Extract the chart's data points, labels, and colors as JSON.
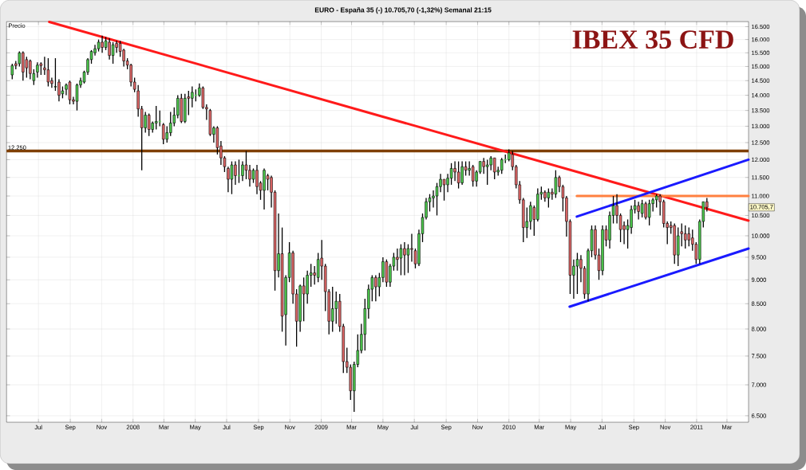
{
  "chart_data": {
    "type": "candlestick",
    "title": "IBEX 35 CFD",
    "subtitle": "EURO - España 35 (-)   10.705,70 (-1,32%)   Semanal  21:15",
    "ylabel": "Precio",
    "log": true,
    "grid": true,
    "colors": [
      "#4cc94c",
      "#e06666",
      "#4cc94c",
      "#e06666",
      "#e06666",
      "#e06666",
      "#4cc94c",
      "#4cc94c",
      "#e06666",
      "#e06666",
      "#e06666",
      "#e06666",
      "#4cc94c",
      "#e06666",
      "#4cc94c",
      "#4cc94c",
      "#e06666",
      "#e06666",
      "#4cc94c",
      "#4cc94c",
      "#4cc94c",
      "#4cc94c",
      "#4cc94c",
      "#4cc94c",
      "#4cc94c",
      "#e06666",
      "#4cc94c",
      "#e06666",
      "#4cc94c",
      "#e06666",
      "#e06666",
      "#e06666",
      "#e06666",
      "#e06666",
      "#e06666",
      "#e06666",
      "#e06666",
      "#4cc94c",
      "#e06666",
      "#4cc94c",
      "#4cc94c",
      "#4cc94c",
      "#e06666",
      "#4cc94c",
      "#4cc94c",
      "#4cc94c",
      "#4cc94c",
      "#e06666",
      "#4cc94c",
      "#e06666",
      "#4cc94c",
      "#4cc94c",
      "#4cc94c",
      "#e06666",
      "#e06666",
      "#e06666",
      "#4cc94c",
      "#e06666",
      "#e06666",
      "#e06666",
      "#e06666",
      "#4cc94c",
      "#e06666",
      "#4cc94c",
      "#4cc94c",
      "#e06666",
      "#e06666",
      "#4cc94c",
      "#e06666",
      "#e06666",
      "#4cc94c",
      "#e06666",
      "#e06666",
      "#e06666",
      "#4cc94c",
      "#e06666",
      "#4cc94c",
      "#4cc94c",
      "#e06666",
      "#e06666",
      "#4cc94c",
      "#e06666",
      "#4cc94c",
      "#4cc94c",
      "#e06666",
      "#4cc94c",
      "#e06666",
      "#e06666",
      "#e06666",
      "#4cc94c",
      "#4cc94c",
      "#e06666",
      "#e06666",
      "#e06666",
      "#e06666",
      "#4cc94c",
      "#4cc94c",
      "#4cc94c",
      "#4cc94c",
      "#4cc94c",
      "#4cc94c",
      "#e06666",
      "#4cc94c",
      "#4cc94c",
      "#e06666",
      "#4cc94c",
      "#4cc94c",
      "#e06666",
      "#4cc94c",
      "#e06666",
      "#4cc94c",
      "#e06666",
      "#e06666",
      "#4cc94c",
      "#4cc94c",
      "#4cc94c",
      "#4cc94c",
      "#4cc94c",
      "#4cc94c",
      "#4cc94c",
      "#e06666",
      "#4cc94c",
      "#4cc94c",
      "#e06666",
      "#e06666",
      "#4cc94c",
      "#e06666",
      "#4cc94c",
      "#e06666",
      "#4cc94c",
      "#4cc94c",
      "#e06666",
      "#4cc94c",
      "#4cc94c",
      "#e06666",
      "#4cc94c",
      "#4cc94c",
      "#4cc94c",
      "#4cc94c",
      "#e06666",
      "#e06666",
      "#e06666",
      "#e06666",
      "#4cc94c",
      "#4cc94c",
      "#e06666",
      "#4cc94c",
      "#4cc94c",
      "#e06666",
      "#4cc94c",
      "#e06666",
      "#4cc94c",
      "#e06666",
      "#e06666",
      "#e06666",
      "#e06666",
      "#4cc94c",
      "#4cc94c",
      "#e06666",
      "#e06666",
      "#4cc94c",
      "#4cc94c",
      "#e06666",
      "#e06666",
      "#4cc94c",
      "#e06666",
      "#4cc94c",
      "#4cc94c",
      "#e06666",
      "#e06666",
      "#e06666",
      "#4cc94c",
      "#4cc94c",
      "#4cc94c",
      "#e06666",
      "#4cc94c",
      "#e06666",
      "#4cc94c",
      "#4cc94c",
      "#4cc94c",
      "#e06666",
      "#e06666",
      "#e06666",
      "#e06666",
      "#e06666",
      "#4cc94c",
      "#e06666",
      "#e06666",
      "#e06666",
      "#e06666",
      "#e06666",
      "#4cc94c",
      "#4cc94c",
      "#e06666"
    ],
    "xlim": [
      "2007-04-30",
      "2011-04-12"
    ],
    "ylim": [
      6400,
      16700
    ],
    "xticks": [
      {
        "value": "2007-07-01",
        "label": "Jul"
      },
      {
        "value": "2007-09-01",
        "label": "Sep"
      },
      {
        "value": "2007-11-01",
        "label": "Nov"
      },
      {
        "value": "2008-01-01",
        "label": "2008"
      },
      {
        "value": "2008-03-01",
        "label": "Mar"
      },
      {
        "value": "2008-05-01",
        "label": "May"
      },
      {
        "value": "2008-07-01",
        "label": "Jul"
      },
      {
        "value": "2008-09-01",
        "label": "Sep"
      },
      {
        "value": "2008-11-01",
        "label": "Nov"
      },
      {
        "value": "2009-01-01",
        "label": "2009"
      },
      {
        "value": "2009-03-01",
        "label": "Mar"
      },
      {
        "value": "2009-05-01",
        "label": "May"
      },
      {
        "value": "2009-07-01",
        "label": "Jul"
      },
      {
        "value": "2009-09-01",
        "label": "Sep"
      },
      {
        "value": "2009-11-01",
        "label": "Nov"
      },
      {
        "value": "2010-01-01",
        "label": "2010"
      },
      {
        "value": "2010-03-01",
        "label": "Mar"
      },
      {
        "value": "2010-05-01",
        "label": "May"
      },
      {
        "value": "2010-07-01",
        "label": "Jul"
      },
      {
        "value": "2010-09-01",
        "label": "Sep"
      },
      {
        "value": "2010-11-01",
        "label": "Nov"
      },
      {
        "value": "2011-01-01",
        "label": "2011"
      },
      {
        "value": "2011-03-01",
        "label": "Mar"
      }
    ],
    "yticks": [
      {
        "value": 6500,
        "label": "6.500"
      },
      {
        "value": 7000,
        "label": "7.000"
      },
      {
        "value": 7500,
        "label": "7.500"
      },
      {
        "value": 8000,
        "label": "8.000"
      },
      {
        "value": 8500,
        "label": "8.500"
      },
      {
        "value": 9000,
        "label": "9.000"
      },
      {
        "value": 9500,
        "label": "9.500"
      },
      {
        "value": 10000,
        "label": "10.000"
      },
      {
        "value": 10500,
        "label": "10.500"
      },
      {
        "value": 11000,
        "label": "11.000"
      },
      {
        "value": 11500,
        "label": "11.500"
      },
      {
        "value": 12000,
        "label": "12.000"
      },
      {
        "value": 12500,
        "label": "12.500"
      },
      {
        "value": 13000,
        "label": "13.000"
      },
      {
        "value": 13500,
        "label": "13.500"
      },
      {
        "value": 14000,
        "label": "14.000"
      },
      {
        "value": 14500,
        "label": "14.500"
      },
      {
        "value": 15000,
        "label": "15.000"
      },
      {
        "value": 15500,
        "label": "15.500"
      },
      {
        "value": 16000,
        "label": "16.000"
      },
      {
        "value": 16500,
        "label": "16.500"
      }
    ],
    "x": [
      "2007-05-11",
      "2007-05-18",
      "2007-05-25",
      "2007-06-01",
      "2007-06-08",
      "2007-06-15",
      "2007-06-22",
      "2007-06-29",
      "2007-07-06",
      "2007-07-13",
      "2007-07-20",
      "2007-07-27",
      "2007-08-03",
      "2007-08-10",
      "2007-08-17",
      "2007-08-24",
      "2007-08-31",
      "2007-09-07",
      "2007-09-14",
      "2007-09-21",
      "2007-09-28",
      "2007-10-05",
      "2007-10-12",
      "2007-10-19",
      "2007-10-26",
      "2007-11-02",
      "2007-11-09",
      "2007-11-16",
      "2007-11-23",
      "2007-11-30",
      "2007-12-07",
      "2007-12-14",
      "2007-12-21",
      "2007-12-28",
      "2008-01-04",
      "2008-01-11",
      "2008-01-18",
      "2008-01-25",
      "2008-02-01",
      "2008-02-08",
      "2008-02-15",
      "2008-02-22",
      "2008-02-29",
      "2008-03-07",
      "2008-03-14",
      "2008-03-21",
      "2008-03-28",
      "2008-04-04",
      "2008-04-11",
      "2008-04-18",
      "2008-04-25",
      "2008-05-02",
      "2008-05-09",
      "2008-05-16",
      "2008-05-23",
      "2008-05-30",
      "2008-06-06",
      "2008-06-13",
      "2008-06-20",
      "2008-06-27",
      "2008-07-04",
      "2008-07-11",
      "2008-07-18",
      "2008-07-25",
      "2008-08-01",
      "2008-08-08",
      "2008-08-15",
      "2008-08-22",
      "2008-08-29",
      "2008-09-05",
      "2008-09-12",
      "2008-09-19",
      "2008-09-26",
      "2008-10-03",
      "2008-10-10",
      "2008-10-17",
      "2008-10-24",
      "2008-10-31",
      "2008-11-07",
      "2008-11-14",
      "2008-11-21",
      "2008-11-28",
      "2008-12-05",
      "2008-12-12",
      "2008-12-19",
      "2008-12-26",
      "2009-01-02",
      "2009-01-09",
      "2009-01-16",
      "2009-01-23",
      "2009-01-30",
      "2009-02-06",
      "2009-02-13",
      "2009-02-20",
      "2009-02-27",
      "2009-03-06",
      "2009-03-13",
      "2009-03-20",
      "2009-03-27",
      "2009-04-03",
      "2009-04-10",
      "2009-04-17",
      "2009-04-24",
      "2009-05-01",
      "2009-05-08",
      "2009-05-15",
      "2009-05-22",
      "2009-05-29",
      "2009-06-05",
      "2009-06-12",
      "2009-06-19",
      "2009-06-26",
      "2009-07-03",
      "2009-07-10",
      "2009-07-17",
      "2009-07-24",
      "2009-07-31",
      "2009-08-07",
      "2009-08-14",
      "2009-08-21",
      "2009-08-28",
      "2009-09-04",
      "2009-09-11",
      "2009-09-18",
      "2009-09-25",
      "2009-10-02",
      "2009-10-09",
      "2009-10-16",
      "2009-10-23",
      "2009-10-30",
      "2009-11-06",
      "2009-11-13",
      "2009-11-20",
      "2009-11-27",
      "2009-12-04",
      "2009-12-11",
      "2009-12-18",
      "2009-12-25",
      "2010-01-01",
      "2010-01-08",
      "2010-01-15",
      "2010-01-22",
      "2010-01-29",
      "2010-02-05",
      "2010-02-12",
      "2010-02-19",
      "2010-02-26",
      "2010-03-05",
      "2010-03-12",
      "2010-03-19",
      "2010-03-26",
      "2010-04-02",
      "2010-04-09",
      "2010-04-16",
      "2010-04-23",
      "2010-04-30",
      "2010-05-07",
      "2010-05-14",
      "2010-05-21",
      "2010-05-28",
      "2010-06-04",
      "2010-06-11",
      "2010-06-18",
      "2010-06-25",
      "2010-07-02",
      "2010-07-09",
      "2010-07-16",
      "2010-07-23",
      "2010-07-30",
      "2010-08-06",
      "2010-08-13",
      "2010-08-20",
      "2010-08-27",
      "2010-09-03",
      "2010-09-10",
      "2010-09-17",
      "2010-09-24",
      "2010-10-01",
      "2010-10-08",
      "2010-10-15",
      "2010-10-22",
      "2010-10-29",
      "2010-11-05",
      "2010-11-12",
      "2010-11-19",
      "2010-11-26",
      "2010-12-03",
      "2010-12-10",
      "2010-12-17",
      "2010-12-24",
      "2010-12-31",
      "2011-01-07",
      "2011-01-14",
      "2011-01-21"
    ],
    "ohlc": [
      [
        14700,
        15100,
        14550,
        15030
      ],
      [
        15100,
        15200,
        14900,
        15030
      ],
      [
        15100,
        15550,
        15000,
        15500
      ],
      [
        15500,
        15550,
        14500,
        14800
      ],
      [
        15250,
        15350,
        14600,
        14950
      ],
      [
        15200,
        15250,
        14550,
        14750
      ],
      [
        14500,
        14900,
        14350,
        14750
      ],
      [
        14800,
        15150,
        14600,
        15050
      ],
      [
        15100,
        15150,
        14700,
        15030
      ],
      [
        14950,
        15350,
        14700,
        14880
      ],
      [
        14880,
        15300,
        14300,
        14450
      ],
      [
        14500,
        14600,
        14250,
        14400
      ],
      [
        14280,
        15300,
        14150,
        14300
      ],
      [
        14450,
        14550,
        13800,
        14000
      ],
      [
        14050,
        14300,
        13900,
        14150
      ],
      [
        14200,
        14400,
        14000,
        14350
      ],
      [
        14450,
        14500,
        13700,
        13850
      ],
      [
        13850,
        13950,
        13700,
        13800
      ],
      [
        13800,
        14400,
        13500,
        14350
      ],
      [
        14350,
        14600,
        14250,
        14500
      ],
      [
        14450,
        14850,
        14400,
        14800
      ],
      [
        14800,
        15300,
        14700,
        15250
      ],
      [
        15250,
        15600,
        15100,
        15550
      ],
      [
        15500,
        15800,
        15400,
        15650
      ],
      [
        15650,
        16000,
        15550,
        15900
      ],
      [
        15900,
        16150,
        15500,
        15700
      ],
      [
        15700,
        16100,
        15600,
        15950
      ],
      [
        15900,
        16050,
        15250,
        15400
      ],
      [
        15400,
        15900,
        15100,
        15800
      ],
      [
        15850,
        15950,
        15500,
        15700
      ],
      [
        15850,
        15950,
        15350,
        15550
      ],
      [
        15600,
        15650,
        15000,
        15200
      ],
      [
        15200,
        15300,
        14900,
        15050
      ],
      [
        15050,
        15100,
        14300,
        14450
      ],
      [
        14450,
        14600,
        14100,
        14200
      ],
      [
        14150,
        14350,
        13300,
        13550
      ],
      [
        13550,
        13650,
        11700,
        12950
      ],
      [
        12950,
        13450,
        12800,
        13350
      ],
      [
        13350,
        13400,
        12700,
        12900
      ],
      [
        12900,
        13150,
        12800,
        13100
      ],
      [
        13100,
        13650,
        12900,
        13150
      ],
      [
        13150,
        13500,
        13000,
        13150
      ],
      [
        13050,
        13100,
        12450,
        12600
      ],
      [
        12600,
        13000,
        12500,
        12800
      ],
      [
        12800,
        13450,
        12700,
        13100
      ],
      [
        13100,
        13600,
        13000,
        13350
      ],
      [
        13350,
        14000,
        13250,
        13900
      ],
      [
        13900,
        14050,
        13100,
        13150
      ],
      [
        13150,
        14050,
        13100,
        13900
      ],
      [
        13950,
        14150,
        13350,
        13900
      ],
      [
        13900,
        14300,
        13600,
        14100
      ],
      [
        14000,
        14200,
        13800,
        14000
      ],
      [
        14000,
        14400,
        13950,
        14250
      ],
      [
        14250,
        14300,
        13550,
        13600
      ],
      [
        13600,
        13700,
        13200,
        13550
      ],
      [
        13500,
        13550,
        12700,
        12750
      ],
      [
        12750,
        13000,
        12500,
        12950
      ],
      [
        12950,
        13000,
        12150,
        12350
      ],
      [
        12400,
        12550,
        11850,
        12050
      ],
      [
        12050,
        12100,
        11650,
        11800
      ],
      [
        11750,
        11800,
        11100,
        11450
      ],
      [
        11450,
        11950,
        11050,
        11850
      ],
      [
        11850,
        11950,
        11300,
        11550
      ],
      [
        11550,
        12000,
        11350,
        11550
      ],
      [
        11550,
        11950,
        11400,
        11850
      ],
      [
        11850,
        12250,
        11450,
        11700
      ],
      [
        11700,
        11850,
        11250,
        11450
      ],
      [
        11450,
        11750,
        11350,
        11700
      ],
      [
        11700,
        11850,
        11050,
        11250
      ],
      [
        11350,
        11400,
        10900,
        11150
      ],
      [
        11150,
        11750,
        10650,
        11700
      ],
      [
        11550,
        11600,
        11150,
        11450
      ],
      [
        11500,
        11550,
        10700,
        11100
      ],
      [
        11100,
        11150,
        8770,
        9200
      ],
      [
        9200,
        10550,
        9050,
        9580
      ],
      [
        9580,
        10200,
        7950,
        8250
      ],
      [
        8280,
        9100,
        7690,
        9050
      ],
      [
        9050,
        9850,
        8950,
        9600
      ],
      [
        9600,
        9650,
        8500,
        8700
      ],
      [
        8700,
        8800,
        7670,
        8150
      ],
      [
        8150,
        8900,
        7950,
        8870
      ],
      [
        8870,
        9050,
        8150,
        8700
      ],
      [
        8700,
        9200,
        8500,
        9100
      ],
      [
        9100,
        9350,
        8850,
        9150
      ],
      [
        9150,
        9300,
        8900,
        9100
      ],
      [
        9050,
        9600,
        8950,
        9450
      ],
      [
        9480,
        9900,
        9000,
        9300
      ],
      [
        9300,
        9350,
        8350,
        8750
      ],
      [
        8750,
        8800,
        7900,
        8150
      ],
      [
        8150,
        8850,
        7950,
        8400
      ],
      [
        8400,
        8750,
        8100,
        8550
      ],
      [
        8550,
        8700,
        7950,
        8050
      ],
      [
        8050,
        8100,
        7200,
        7400
      ],
      [
        7400,
        7650,
        7200,
        7300
      ],
      [
        7300,
        7350,
        6750,
        6900
      ],
      [
        6900,
        7400,
        6560,
        7350
      ],
      [
        7350,
        7900,
        7300,
        7600
      ],
      [
        7600,
        8100,
        7550,
        7900
      ],
      [
        7900,
        8600,
        7600,
        8400
      ],
      [
        8400,
        8900,
        8200,
        8800
      ],
      [
        8800,
        9100,
        8550,
        9050
      ],
      [
        9050,
        9100,
        8550,
        8850
      ],
      [
        8850,
        9150,
        8650,
        9050
      ],
      [
        9050,
        9500,
        8950,
        9400
      ],
      [
        9400,
        9450,
        8850,
        8950
      ],
      [
        8950,
        9350,
        8850,
        9300
      ],
      [
        9300,
        9600,
        9200,
        9500
      ],
      [
        9500,
        9700,
        9200,
        9450
      ],
      [
        9480,
        9800,
        9100,
        9700
      ],
      [
        9700,
        9850,
        9100,
        9550
      ],
      [
        9550,
        9800,
        9150,
        9700
      ],
      [
        9700,
        10050,
        9400,
        9680
      ],
      [
        9650,
        9700,
        9250,
        9350
      ],
      [
        9350,
        10150,
        9300,
        10050
      ],
      [
        10050,
        10550,
        9850,
        10450
      ],
      [
        10450,
        10950,
        10400,
        10850
      ],
      [
        10850,
        11050,
        10600,
        10950
      ],
      [
        10950,
        11150,
        10700,
        11000
      ],
      [
        11000,
        11350,
        10500,
        11250
      ],
      [
        11250,
        11600,
        11100,
        11450
      ],
      [
        11450,
        11450,
        10880,
        11300
      ],
      [
        11300,
        11600,
        11100,
        11480
      ],
      [
        11480,
        11900,
        11300,
        11750
      ],
      [
        11750,
        11950,
        11400,
        11650
      ],
      [
        11650,
        11950,
        11200,
        11350
      ],
      [
        11350,
        11950,
        11300,
        11800
      ],
      [
        11800,
        11950,
        11550,
        11700
      ],
      [
        11700,
        11950,
        11550,
        11750
      ],
      [
        11800,
        11850,
        11250,
        11400
      ],
      [
        11400,
        11700,
        11250,
        11650
      ],
      [
        11650,
        11950,
        11600,
        11950
      ],
      [
        11950,
        12050,
        11600,
        11800
      ],
      [
        11800,
        12000,
        11300,
        11850
      ],
      [
        11850,
        12100,
        11700,
        12050
      ],
      [
        12050,
        12050,
        11450,
        11650
      ],
      [
        11650,
        11800,
        11550,
        11700
      ],
      [
        11700,
        12050,
        11600,
        12000
      ],
      [
        12000,
        12150,
        11900,
        12000
      ],
      [
        12000,
        12300,
        11950,
        12200
      ],
      [
        12150,
        12250,
        11700,
        11800
      ],
      [
        11800,
        11850,
        11200,
        11300
      ],
      [
        11300,
        11400,
        10800,
        10900
      ],
      [
        10900,
        10950,
        9850,
        10200
      ],
      [
        10200,
        10700,
        9950,
        10350
      ],
      [
        10350,
        10850,
        10150,
        10750
      ],
      [
        10700,
        10750,
        10000,
        10400
      ],
      [
        10400,
        11200,
        10350,
        11050
      ],
      [
        11050,
        11250,
        10900,
        11100
      ],
      [
        11100,
        11150,
        10850,
        10950
      ],
      [
        10950,
        11200,
        10700,
        11100
      ],
      [
        11100,
        11200,
        10900,
        11050
      ],
      [
        11050,
        11700,
        10950,
        11500
      ],
      [
        11500,
        11550,
        11100,
        11250
      ],
      [
        11250,
        11300,
        10600,
        10950
      ],
      [
        10950,
        11000,
        9980,
        10350
      ],
      [
        10350,
        10400,
        8700,
        9100
      ],
      [
        9100,
        9450,
        8600,
        9300
      ],
      [
        9300,
        9600,
        8700,
        9450
      ],
      [
        9450,
        9550,
        8950,
        9250
      ],
      [
        9250,
        9300,
        8600,
        8700
      ],
      [
        8700,
        9700,
        8550,
        9650
      ],
      [
        9650,
        10250,
        9500,
        10150
      ],
      [
        10150,
        10250,
        9450,
        9550
      ],
      [
        9550,
        9700,
        9000,
        9200
      ],
      [
        9200,
        10250,
        9100,
        10150
      ],
      [
        10150,
        10250,
        9750,
        9900
      ],
      [
        9900,
        10600,
        9700,
        10500
      ],
      [
        10500,
        11000,
        10300,
        10750
      ],
      [
        10750,
        11050,
        10300,
        10500
      ],
      [
        10500,
        10550,
        9850,
        10150
      ],
      [
        10250,
        10350,
        9800,
        10150
      ],
      [
        10150,
        10400,
        9700,
        10250
      ],
      [
        10200,
        10750,
        10050,
        10650
      ],
      [
        10650,
        10900,
        10550,
        10750
      ],
      [
        10750,
        10850,
        10400,
        10600
      ],
      [
        10550,
        10900,
        10450,
        10800
      ],
      [
        10800,
        10850,
        10400,
        10450
      ],
      [
        10450,
        10900,
        10250,
        10800
      ],
      [
        10800,
        10950,
        10600,
        10900
      ],
      [
        10900,
        11050,
        10700,
        11000
      ],
      [
        11000,
        11050,
        10500,
        10850
      ],
      [
        10850,
        10900,
        10200,
        10300
      ],
      [
        10300,
        10350,
        9800,
        10200
      ],
      [
        10250,
        10350,
        10050,
        10200
      ],
      [
        10250,
        10300,
        9350,
        9550
      ],
      [
        9550,
        10200,
        9300,
        10000
      ],
      [
        10100,
        10300,
        9750,
        10050
      ],
      [
        10050,
        10250,
        9700,
        9900
      ],
      [
        10050,
        10200,
        9750,
        9900
      ],
      [
        9950,
        10150,
        9650,
        9800
      ],
      [
        9800,
        9850,
        9350,
        9450
      ],
      [
        9450,
        10400,
        9350,
        10350
      ],
      [
        10350,
        10850,
        10200,
        10850
      ],
      [
        10850,
        10950,
        10600,
        10705.7
      ]
    ],
    "series": [
      {
        "type": "line",
        "color": "#ff1a1a",
        "x": [
          "2007-07-22",
          "2011-04-12"
        ],
        "values": [
          16690,
          10370
        ]
      },
      {
        "type": "line",
        "color": "#ff8040",
        "x": [
          "2010-05-13",
          "2011-04-12"
        ],
        "values": [
          11000,
          11000
        ]
      },
      {
        "type": "line",
        "color": "#1a1aff",
        "x": [
          "2010-05-13",
          "2011-04-12"
        ],
        "values": [
          10470,
          12000
        ]
      },
      {
        "type": "line",
        "color": "#1a1aff",
        "x": [
          "2010-04-29",
          "2011-04-12"
        ],
        "values": [
          8440,
          9700
        ]
      }
    ],
    "ref_lines": [
      {
        "axis": "y",
        "value": 12250,
        "label": "12.250",
        "color": "#7f3f00"
      }
    ],
    "annotations": [
      "10.705,7"
    ]
  }
}
